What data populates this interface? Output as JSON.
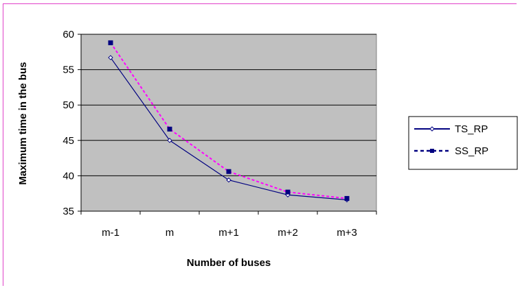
{
  "chart_data": {
    "type": "line",
    "categories": [
      "m-1",
      "m",
      "m+1",
      "m+2",
      "m+3"
    ],
    "series": [
      {
        "name": "TS_RP",
        "values": [
          56.7,
          45.0,
          39.4,
          37.3,
          36.6
        ],
        "color": "#000080",
        "line_color": "#000080",
        "marker": "diamond-open",
        "line_style": "solid"
      },
      {
        "name": "SS_RP",
        "values": [
          58.8,
          46.6,
          40.6,
          37.7,
          36.8
        ],
        "color": "#000080",
        "line_color": "#ff00ff",
        "marker": "square",
        "line_style": "dashed"
      }
    ],
    "xlabel": "Number of buses",
    "ylabel": "Maximum time in the bus",
    "ylim": [
      35,
      60
    ],
    "yticks": [
      35,
      40,
      45,
      50,
      55,
      60
    ],
    "grid": true,
    "plot_background": "#c0c0c0",
    "frame_color": "#e040c8",
    "legend_position": "right"
  }
}
